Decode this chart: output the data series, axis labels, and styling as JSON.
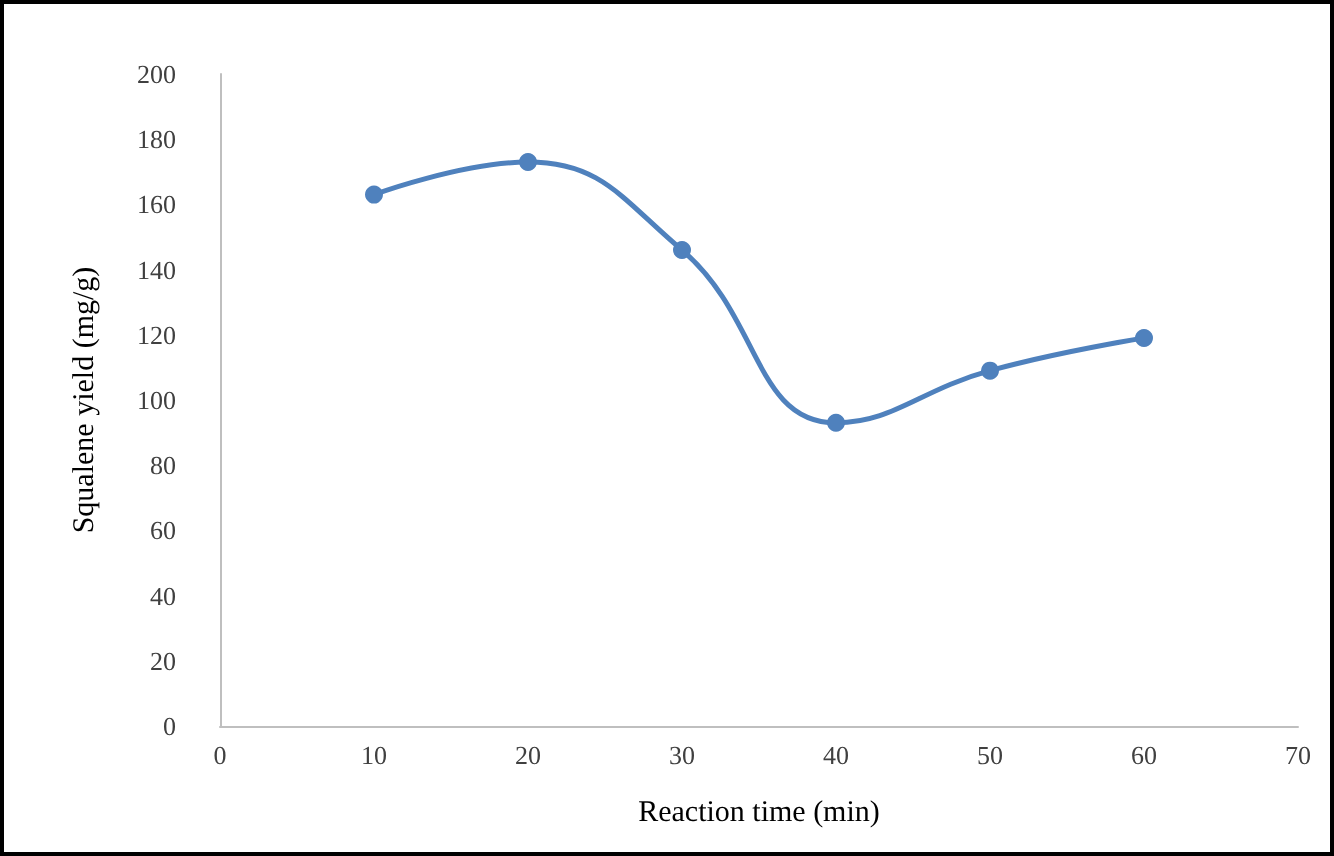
{
  "chart_data": {
    "type": "line",
    "xlabel": "Reaction time (min)",
    "ylabel": "Squalene yield (mg/g)",
    "x": [
      10,
      20,
      30,
      40,
      50,
      60
    ],
    "series": [
      {
        "color": "#4f81bd",
        "values": [
          163,
          173,
          146,
          93,
          109,
          119
        ]
      }
    ],
    "xlim": [
      0,
      70
    ],
    "xticks": [
      0,
      10,
      20,
      30,
      40,
      50,
      60,
      70
    ],
    "ylim": [
      0,
      200
    ],
    "yticks": [
      0,
      20,
      40,
      60,
      80,
      100,
      120,
      140,
      160,
      180,
      200
    ],
    "grid": false,
    "marker": "circle",
    "line_style": "solid"
  }
}
